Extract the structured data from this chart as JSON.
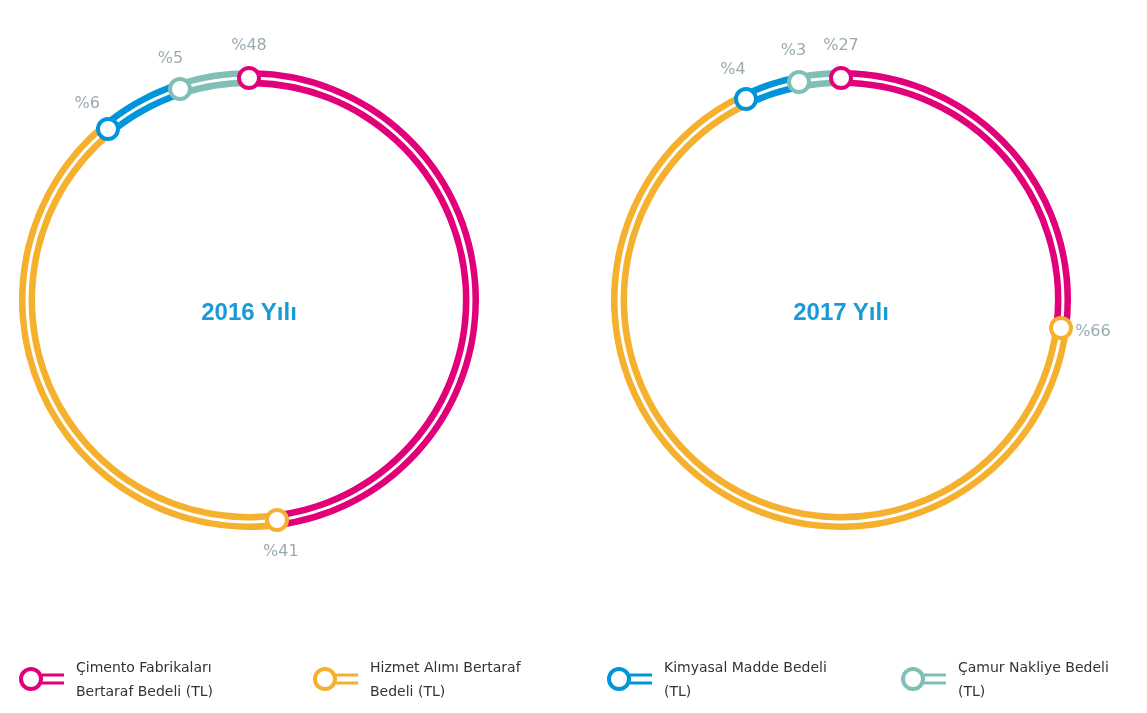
{
  "chart_data": [
    {
      "type": "donut",
      "title": "2016 Yılı",
      "categories": [
        "Çimento Fabrikaları Bertaraf Bedeli (TL)",
        "Hizmet Alımı Bertaraf Bedeli (TL)",
        "Kimyasal Madde Bedeli (TL)",
        "Çamur Nakliye Bedeli (TL)"
      ],
      "values": [
        48,
        41,
        6,
        5
      ],
      "value_labels": [
        "%48",
        "%41",
        "%6",
        "%5"
      ],
      "colors": [
        "#e2007a",
        "#f5b02e",
        "#0095da",
        "#7fbfb5"
      ],
      "legend": "bottom"
    },
    {
      "type": "donut",
      "title": "2017 Yılı",
      "categories": [
        null,
        null,
        null,
        null
      ],
      "values": [
        27,
        66,
        4,
        3
      ],
      "value_labels": [
        "%27",
        "%66",
        "%4",
        "%3"
      ],
      "colors": [
        "#e2007a",
        "#f5b02e",
        "#0095da",
        "#7fbfb5"
      ]
    }
  ]
}
